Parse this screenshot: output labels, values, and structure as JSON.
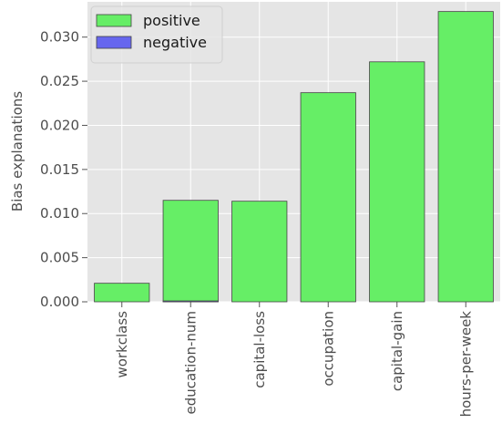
{
  "chart_data": {
    "type": "bar",
    "title": "",
    "xlabel": "",
    "ylabel": "Bias explanations",
    "categories": [
      "workclass",
      "education-num",
      "capital-loss",
      "occupation",
      "capital-gain",
      "hours-per-week"
    ],
    "series": [
      {
        "name": "positive",
        "color": "#66ee66",
        "values": [
          0.0021,
          0.0115,
          0.0114,
          0.0237,
          0.0272,
          0.0329
        ]
      },
      {
        "name": "negative",
        "color": "#6666ee",
        "values": [
          0.0,
          0.0001,
          0.0,
          0.0,
          0.0,
          0.0
        ]
      }
    ],
    "ylim": [
      0,
      0.034
    ],
    "yticks": [
      0.0,
      0.005,
      0.01,
      0.015,
      0.02,
      0.025,
      0.03
    ],
    "ytick_labels": [
      "0.000",
      "0.005",
      "0.010",
      "0.015",
      "0.020",
      "0.025",
      "0.030"
    ],
    "grid": true,
    "legend_position": "top-left",
    "background": "#e5e5e5"
  }
}
